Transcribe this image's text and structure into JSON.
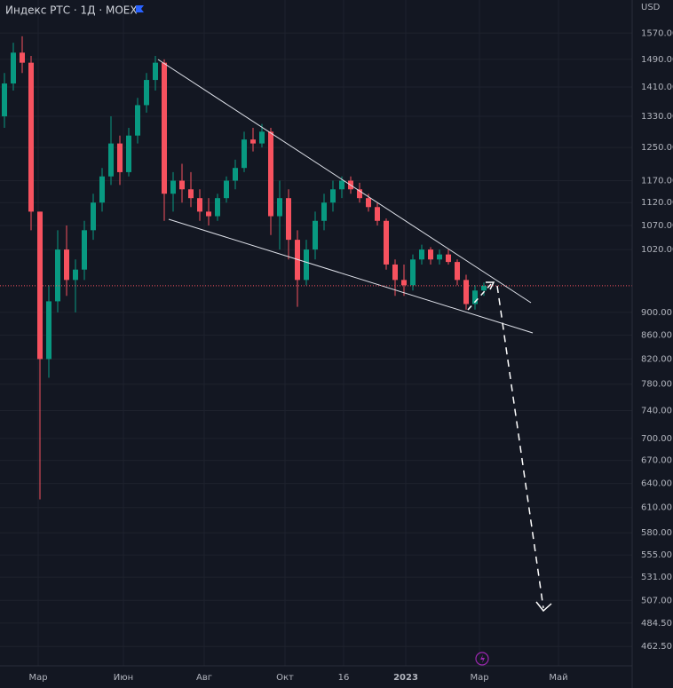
{
  "chart_data": {
    "type": "candlestick",
    "title": "Индекс РТС · 1Д · MOEX",
    "currency": "USD",
    "log_scale": true,
    "grid": true,
    "up_color": "#089981",
    "down_color": "#f7525f",
    "last_price": 949.05,
    "x": [
      0,
      1,
      2,
      3,
      4,
      5,
      6,
      7,
      8,
      9,
      10,
      11,
      12,
      13,
      14,
      15,
      16,
      17,
      18,
      19,
      20,
      21,
      22,
      23,
      24,
      25,
      26,
      27,
      28,
      29,
      30,
      31,
      32,
      33,
      34,
      35,
      36,
      37,
      38,
      39,
      40,
      41,
      42,
      43,
      44,
      45,
      46,
      47,
      48,
      49,
      50,
      51,
      52,
      53,
      54
    ],
    "open": [
      1330,
      1420,
      1510,
      1480,
      1100,
      820,
      920,
      1020,
      960,
      980,
      1060,
      1120,
      1180,
      1260,
      1190,
      1280,
      1360,
      1430,
      1480,
      1140,
      1170,
      1150,
      1130,
      1100,
      1090,
      1130,
      1170,
      1200,
      1270,
      1260,
      1290,
      1090,
      1130,
      1040,
      960,
      1020,
      1080,
      1120,
      1150,
      1170,
      1150,
      1130,
      1110,
      1080,
      990,
      960,
      950,
      1000,
      1020,
      1000,
      1010,
      995,
      960,
      915,
      940
    ],
    "high": [
      1450,
      1540,
      1560,
      1500,
      1100,
      950,
      1060,
      1070,
      1000,
      1080,
      1140,
      1200,
      1330,
      1280,
      1300,
      1380,
      1450,
      1500,
      1490,
      1190,
      1210,
      1190,
      1150,
      1130,
      1140,
      1180,
      1220,
      1290,
      1300,
      1310,
      1300,
      1170,
      1150,
      1060,
      1040,
      1100,
      1140,
      1170,
      1180,
      1180,
      1165,
      1140,
      1120,
      1085,
      1000,
      990,
      1010,
      1030,
      1025,
      1020,
      1020,
      1000,
      970,
      950,
      955
    ],
    "low": [
      1300,
      1400,
      1450,
      1060,
      620,
      790,
      900,
      930,
      900,
      960,
      1040,
      1100,
      1160,
      1160,
      1180,
      1260,
      1340,
      1400,
      1080,
      1100,
      1120,
      1110,
      1080,
      1070,
      1080,
      1120,
      1150,
      1190,
      1240,
      1250,
      1050,
      1020,
      1000,
      910,
      950,
      1000,
      1060,
      1100,
      1130,
      1140,
      1120,
      1100,
      1070,
      980,
      930,
      930,
      940,
      990,
      990,
      990,
      990,
      950,
      905,
      905,
      930
    ],
    "close": [
      1420,
      1510,
      1480,
      1100,
      820,
      920,
      1020,
      960,
      980,
      1060,
      1120,
      1180,
      1260,
      1190,
      1280,
      1360,
      1430,
      1480,
      1140,
      1170,
      1150,
      1130,
      1100,
      1090,
      1130,
      1170,
      1200,
      1270,
      1260,
      1290,
      1090,
      1130,
      1040,
      960,
      1020,
      1080,
      1120,
      1150,
      1170,
      1150,
      1130,
      1110,
      1080,
      990,
      960,
      950,
      1000,
      1020,
      1000,
      1010,
      995,
      960,
      915,
      940,
      949.05
    ],
    "xlim": [
      -0.5,
      70.7
    ],
    "xticks": [
      {
        "value": 3.8,
        "label": "Мар"
      },
      {
        "value": 13.4,
        "label": "Июн"
      },
      {
        "value": 22.5,
        "label": "Авг"
      },
      {
        "value": 31.6,
        "label": "Окт"
      },
      {
        "value": 38.2,
        "label": "16"
      },
      {
        "value": 45.2,
        "label": "2023"
      },
      {
        "value": 53.5,
        "label": "Мар"
      },
      {
        "value": 62.4,
        "label": "Май"
      }
    ],
    "ylim": [
      445,
      1677
    ],
    "yticks": [
      {
        "value": 1570,
        "label": "1570.00"
      },
      {
        "value": 1490,
        "label": "1490.00"
      },
      {
        "value": 1410,
        "label": "1410.00"
      },
      {
        "value": 1330,
        "label": "1330.00"
      },
      {
        "value": 1250,
        "label": "1250.00"
      },
      {
        "value": 1170,
        "label": "1170.00"
      },
      {
        "value": 1120,
        "label": "1120.00"
      },
      {
        "value": 1070,
        "label": "1070.00"
      },
      {
        "value": 1020,
        "label": "1020.00"
      },
      {
        "value": 900,
        "label": "900.00"
      },
      {
        "value": 860,
        "label": "860.00"
      },
      {
        "value": 820,
        "label": "820.00"
      },
      {
        "value": 780,
        "label": "780.00"
      },
      {
        "value": 740,
        "label": "740.00"
      },
      {
        "value": 700,
        "label": "700.00"
      },
      {
        "value": 670,
        "label": "670.00"
      },
      {
        "value": 640,
        "label": "640.00"
      },
      {
        "value": 610,
        "label": "610.00"
      },
      {
        "value": 580,
        "label": "580.00"
      },
      {
        "value": 555,
        "label": "555.00"
      },
      {
        "value": 531,
        "label": "531.00"
      },
      {
        "value": 507,
        "label": "507.00"
      },
      {
        "value": 484.5,
        "label": "484.50"
      },
      {
        "value": 462.5,
        "label": "462.50"
      }
    ]
  }
}
